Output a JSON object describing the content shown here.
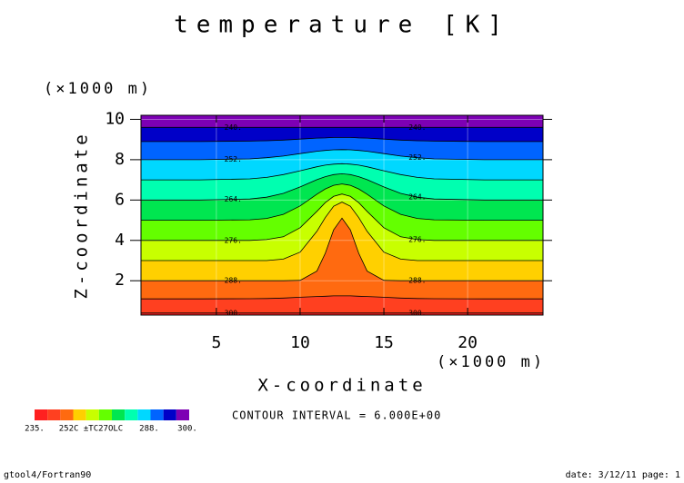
{
  "chart_data": {
    "type": "contour",
    "title": "temperature [K]",
    "xlabel": "X-coordinate",
    "ylabel": "Z-coordinate",
    "x_unit": "(×1000 m)",
    "y_unit": "(×1000 m)",
    "xlim": [
      0.5,
      24.5
    ],
    "ylim": [
      0.3,
      10.2
    ],
    "xticks": [
      5,
      10,
      15,
      20
    ],
    "yticks": [
      2,
      4,
      6,
      8,
      10
    ],
    "grid": true,
    "x": [
      0.5,
      4,
      7,
      8,
      9,
      10,
      11,
      11.5,
      12,
      12.5,
      13,
      13.5,
      14,
      15,
      16,
      17,
      18,
      21,
      24.5
    ],
    "contours": [
      {
        "level": 300,
        "label": "300.",
        "z": [
          0.4,
          0.4,
          0.4,
          0.4,
          0.4,
          0.4,
          0.4,
          0.4,
          0.4,
          0.4,
          0.4,
          0.4,
          0.4,
          0.4,
          0.4,
          0.4,
          0.4,
          0.4,
          0.4
        ]
      },
      {
        "level": 294,
        "z": [
          1.1,
          1.1,
          1.11,
          1.12,
          1.14,
          1.18,
          1.22,
          1.23,
          1.25,
          1.25,
          1.25,
          1.23,
          1.22,
          1.18,
          1.14,
          1.12,
          1.11,
          1.1,
          1.1
        ]
      },
      {
        "level": 288,
        "label": "288.",
        "z": [
          2,
          2,
          2,
          2,
          2,
          2.02,
          2.48,
          3.36,
          4.52,
          5.1,
          4.52,
          3.36,
          2.48,
          2.02,
          2,
          2,
          2,
          2,
          2
        ]
      },
      {
        "level": 282,
        "z": [
          3,
          3,
          3,
          3,
          3.07,
          3.42,
          4.45,
          5.13,
          5.69,
          5.9,
          5.69,
          5.13,
          4.45,
          3.42,
          3.07,
          3,
          3,
          3,
          3
        ]
      },
      {
        "level": 276,
        "label": "276.",
        "z": [
          4,
          4,
          4,
          4.04,
          4.18,
          4.63,
          5.44,
          5.87,
          6.18,
          6.3,
          6.18,
          5.87,
          5.44,
          4.63,
          4.18,
          4.04,
          4,
          4,
          4
        ]
      },
      {
        "level": 270,
        "z": [
          5,
          5,
          5.02,
          5.09,
          5.29,
          5.71,
          6.29,
          6.55,
          6.73,
          6.8,
          6.73,
          6.55,
          6.29,
          5.71,
          5.29,
          5.09,
          5.02,
          5,
          5
        ]
      },
      {
        "level": 264,
        "label": "264.",
        "z": [
          6,
          6,
          6.05,
          6.14,
          6.33,
          6.65,
          7.01,
          7.16,
          7.26,
          7.3,
          7.26,
          7.16,
          7.01,
          6.65,
          6.33,
          6.14,
          6.05,
          6,
          6
        ]
      },
      {
        "level": 258,
        "z": [
          7,
          7,
          7.05,
          7.12,
          7.26,
          7.45,
          7.65,
          7.73,
          7.78,
          7.8,
          7.78,
          7.73,
          7.65,
          7.45,
          7.26,
          7.12,
          7.05,
          7,
          7
        ]
      },
      {
        "level": 252,
        "label": "252.",
        "z": [
          8,
          8,
          8.04,
          8.1,
          8.18,
          8.3,
          8.42,
          8.46,
          8.49,
          8.5,
          8.49,
          8.46,
          8.42,
          8.3,
          8.18,
          8.1,
          8.04,
          8,
          8
        ]
      },
      {
        "level": 246,
        "z": [
          8.9,
          8.9,
          8.92,
          8.94,
          8.97,
          9.02,
          9.07,
          9.08,
          9.1,
          9.1,
          9.1,
          9.08,
          9.07,
          9.02,
          8.97,
          8.94,
          8.92,
          8.9,
          8.9
        ]
      },
      {
        "level": 240,
        "label": "240.",
        "z": [
          9.6,
          9.6,
          9.6,
          9.6,
          9.6,
          9.6,
          9.6,
          9.6,
          9.6,
          9.6,
          9.6,
          9.6,
          9.6,
          9.6,
          9.6,
          9.6,
          9.6,
          9.6,
          9.6
        ]
      }
    ],
    "colors": [
      "#ff2020",
      "#ff4020",
      "#ff6a10",
      "#ffd000",
      "#c8ff00",
      "#64ff00",
      "#00e650",
      "#00ffb0",
      "#00d8ff",
      "#0064ff",
      "#0000c8",
      "#7d00b4"
    ],
    "colorbar_labels": [
      "235.",
      "252C ±TC27OLC",
      "288.",
      "300."
    ],
    "contour_interval": "CONTOUR INTERVAL = 6.000E+00",
    "footer_left": "gtool4/Fortran90",
    "footer_right": "date: 3/12/11 page: 1"
  }
}
